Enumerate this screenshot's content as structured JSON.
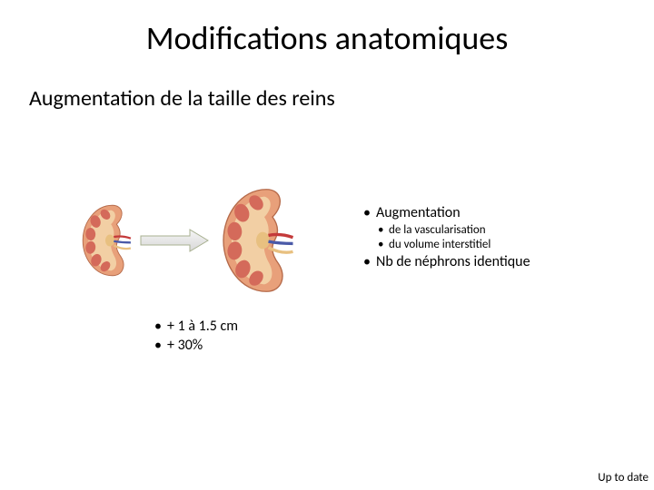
{
  "title": "Modifications anatomiques",
  "subtitle": "Augmentation de la taille des reins",
  "kidneys": {
    "small_scale": 0.78,
    "large_scale": 1.0,
    "outer_fill": "#e8a07a",
    "outer_stroke": "#b56a4a",
    "inner_fill": "#f3d4a8",
    "pyramid_fill": "#d46a5a",
    "pelvis_fill": "#e8c080",
    "vessel_red": "#c43a3a",
    "vessel_blue": "#4a5aa8"
  },
  "arrow": {
    "fill_top": "#f5f5f5",
    "fill_bottom": "#d8d8d8",
    "stroke": "#a8b090"
  },
  "right_list": {
    "item1": "Augmentation",
    "item1_sub1": "de la vascularisation",
    "item1_sub2": "du volume interstitiel",
    "item2": "Nb de néphrons identique"
  },
  "bottom_list": {
    "item1": "+ 1 à 1.5 cm",
    "item2": "+ 30%"
  },
  "citation": "Up to date",
  "colors": {
    "background": "#ffffff",
    "text": "#000000"
  },
  "fonts": {
    "title_size": 36,
    "subtitle_size": 24,
    "body_size": 16,
    "sub_size": 13,
    "cite_size": 13
  }
}
